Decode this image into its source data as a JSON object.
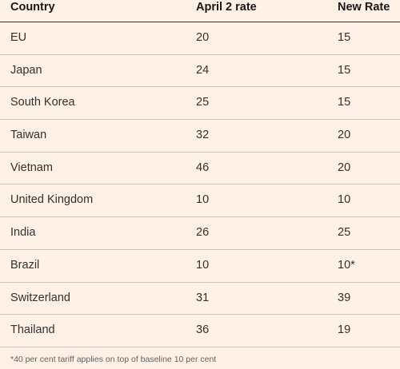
{
  "chart_data": {
    "type": "table",
    "columns": [
      "Country",
      "April 2 rate",
      "New Rate"
    ],
    "rows": [
      [
        "EU",
        "20",
        "15"
      ],
      [
        "Japan",
        "24",
        "15"
      ],
      [
        "South Korea",
        "25",
        "15"
      ],
      [
        "Taiwan",
        "32",
        "20"
      ],
      [
        "Vietnam",
        "46",
        "20"
      ],
      [
        "United Kingdom",
        "10",
        "10"
      ],
      [
        "India",
        "26",
        "25"
      ],
      [
        "Brazil",
        "10",
        "10*"
      ],
      [
        "Switzerland",
        "31",
        "39"
      ],
      [
        "Thailand",
        "36",
        "19"
      ]
    ],
    "footnote": "*40 per cent tariff applies on top of baseline 10 per cent"
  },
  "colors": {
    "background": "#fff1e5",
    "text": "#33302e",
    "header_rule": "#33302e",
    "row_rule": "#cdc3b8"
  }
}
